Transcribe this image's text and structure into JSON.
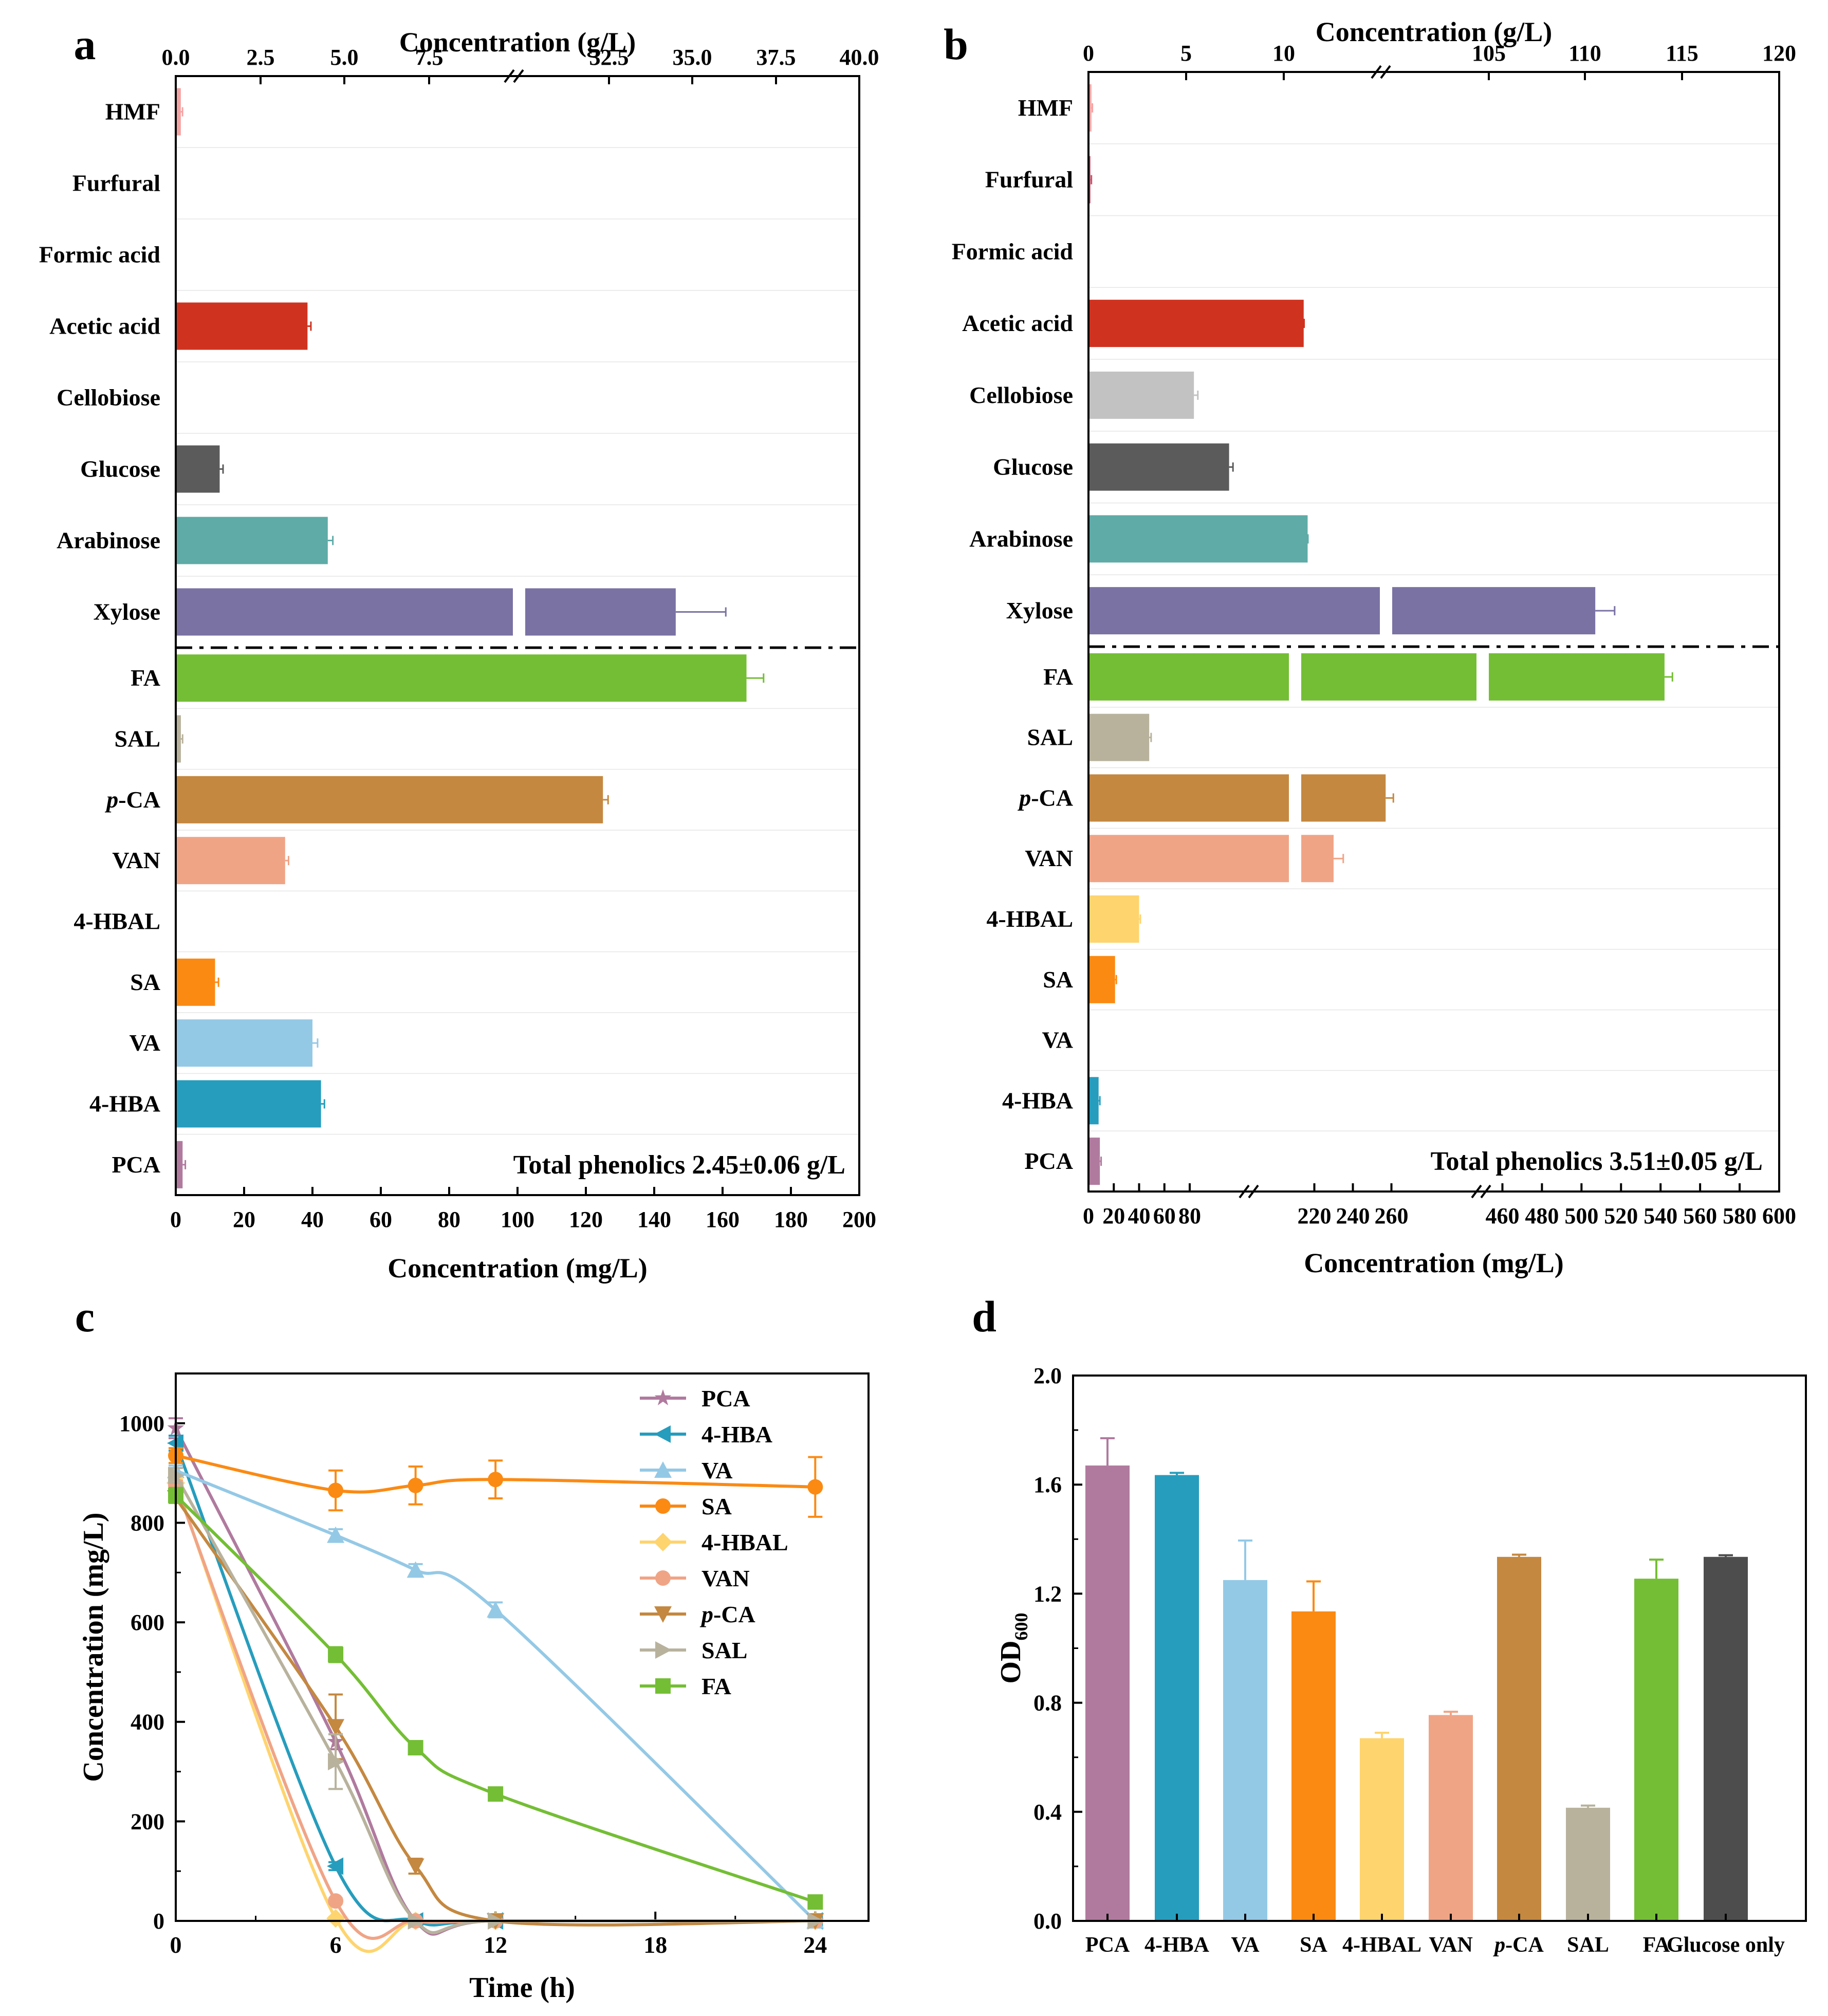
{
  "colors": {
    "HMF": "#f4a3a3",
    "Furfural": "#c2536b",
    "Formic acid": "#999999",
    "Acetic acid": "#cf3320",
    "Cellobiose": "#c2c2c2",
    "Glucose": "#5b5b5b",
    "Arabinose": "#5eaba7",
    "Xylose": "#7a72a3",
    "FA": "#74be35",
    "SAL": "#b8b29d",
    "p-CA": "#c48840",
    "VAN": "#f0a486",
    "4-HBAL": "#fed46e",
    "SA": "#fb8a13",
    "VA": "#94c9e6",
    "4-HBA": "#269dbd",
    "PCA": "#b07a9e",
    "Glucose only": "#4d4d4d"
  },
  "chart_data": [
    {
      "panel": "a",
      "type": "bar",
      "orientation": "horizontal",
      "top_axis": {
        "label": "Concentration (g/L)",
        "ticks": [
          "0.0",
          "2.5",
          "5.0",
          "7.5",
          "32.5",
          "35.0",
          "37.5",
          "40.0"
        ]
      },
      "bottom_axis": {
        "label": "Concentration (mg/L)",
        "ticks": [
          "0",
          "20",
          "40",
          "60",
          "80",
          "100",
          "120",
          "140",
          "160",
          "180",
          "200"
        ]
      },
      "sugars": {
        "unit": "g/L",
        "categories": [
          "HMF",
          "Furfural",
          "Formic acid",
          "Acetic acid",
          "Cellobiose",
          "Glucose",
          "Arabinose",
          "Xylose"
        ],
        "values": [
          0.15,
          0,
          0,
          3.9,
          0,
          1.3,
          4.5,
          34.5
        ],
        "errors": [
          0.05,
          0,
          0,
          0.1,
          0,
          0.1,
          0.15,
          1.5
        ]
      },
      "phenolics": {
        "unit": "mg/L",
        "categories": [
          "FA",
          "SAL",
          "p-CA",
          "VAN",
          "4-HBAL",
          "SA",
          "VA",
          "4-HBA",
          "PCA"
        ],
        "values": [
          167,
          1.5,
          125,
          32,
          0,
          11.5,
          40,
          42.5,
          2
        ],
        "errors": [
          5,
          0.5,
          1.5,
          1,
          0,
          1,
          1.5,
          1,
          0.8
        ]
      },
      "annotation": "Total phenolics 2.45±0.06 g/L"
    },
    {
      "panel": "b",
      "type": "bar",
      "orientation": "horizontal",
      "top_axis": {
        "label": "Concentration (g/L)",
        "ticks": [
          "0",
          "5",
          "10",
          "105",
          "110",
          "115",
          "120"
        ]
      },
      "bottom_axis": {
        "label": "Concentration (mg/L)",
        "ticks": [
          "0",
          "20",
          "40",
          "60",
          "80",
          "220",
          "240",
          "260",
          "460",
          "480",
          "500",
          "520",
          "540",
          "560",
          "580",
          "600"
        ]
      },
      "sugars": {
        "unit": "g/L",
        "categories": [
          "HMF",
          "Furfural",
          "Formic acid",
          "Acetic acid",
          "Cellobiose",
          "Glucose",
          "Arabinose",
          "Xylose"
        ],
        "values": [
          0.15,
          0.1,
          0,
          11.2,
          5.4,
          7.2,
          13.2,
          110.5
        ],
        "errors": [
          0.05,
          0.05,
          0,
          0.2,
          0.2,
          0.2,
          0.15,
          1
        ]
      },
      "phenolics": {
        "unit": "mg/L",
        "categories": [
          "FA",
          "SAL",
          "p-CA",
          "VAN",
          "4-HBAL",
          "SA",
          "VA",
          "4-HBA",
          "PCA"
        ],
        "values": [
          542,
          48,
          257,
          230,
          40,
          21,
          0,
          8,
          9
        ],
        "errors": [
          4,
          1.5,
          4,
          5,
          1,
          1,
          0,
          1,
          1
        ]
      },
      "annotation": "Total phenolics 3.51±0.05 g/L"
    },
    {
      "panel": "c",
      "type": "line",
      "xlabel": "Time (h)",
      "ylabel": "Concentration (mg/L)",
      "xticks": [
        "0",
        "6",
        "12",
        "18",
        "24"
      ],
      "yticks": [
        "0",
        "200",
        "400",
        "600",
        "800",
        "1000"
      ],
      "xlim": [
        0,
        26
      ],
      "ylim": [
        0,
        1100
      ],
      "series": [
        {
          "name": "PCA",
          "marker": "star",
          "x": [
            0,
            6,
            9,
            12,
            24
          ],
          "y": [
            990,
            360,
            0,
            0,
            0
          ],
          "err": [
            20,
            15,
            0,
            0,
            0
          ]
        },
        {
          "name": "4-HBA",
          "marker": "tri-left",
          "x": [
            0,
            6,
            9,
            12,
            24
          ],
          "y": [
            960,
            110,
            0,
            0,
            0
          ],
          "err": [
            15,
            8,
            0,
            0,
            0
          ]
        },
        {
          "name": "VA",
          "marker": "tri-up",
          "x": [
            0,
            6,
            9,
            12,
            24
          ],
          "y": [
            905,
            775,
            705,
            625,
            0
          ],
          "err": [
            10,
            12,
            12,
            15,
            0
          ]
        },
        {
          "name": "SA",
          "marker": "circle",
          "x": [
            0,
            6,
            9,
            12,
            24
          ],
          "y": [
            935,
            865,
            875,
            887,
            872
          ],
          "err": [
            15,
            40,
            38,
            38,
            60
          ]
        },
        {
          "name": "4-HBAL",
          "marker": "diamond",
          "x": [
            0,
            6,
            9,
            12,
            24
          ],
          "y": [
            880,
            5,
            0,
            0,
            0
          ],
          "err": [
            10,
            3,
            0,
            0,
            0
          ]
        },
        {
          "name": "VAN",
          "marker": "circle",
          "x": [
            0,
            6,
            9,
            12,
            24
          ],
          "y": [
            875,
            40,
            0,
            0,
            0
          ],
          "err": [
            10,
            5,
            0,
            0,
            0
          ]
        },
        {
          "name": "p-CA",
          "marker": "tri-down",
          "x": [
            0,
            6,
            9,
            12,
            24
          ],
          "y": [
            850,
            390,
            110,
            0,
            0
          ],
          "err": [
            10,
            65,
            15,
            0,
            0
          ]
        },
        {
          "name": "SAL",
          "marker": "tri-right",
          "x": [
            0,
            6,
            9,
            12,
            24
          ],
          "y": [
            895,
            320,
            0,
            0,
            0
          ],
          "err": [
            15,
            55,
            0,
            0,
            0
          ]
        },
        {
          "name": "FA",
          "marker": "square",
          "x": [
            0,
            6,
            9,
            12,
            24
          ],
          "y": [
            855,
            535,
            348,
            255,
            38
          ],
          "err": [
            15,
            15,
            8,
            8,
            8
          ]
        }
      ]
    },
    {
      "panel": "d",
      "type": "bar",
      "ylabel": "OD",
      "ylabel_sub": "600",
      "yticks": [
        "0.0",
        "0.4",
        "0.8",
        "1.2",
        "1.6",
        "2.0"
      ],
      "ylim": [
        0,
        2
      ],
      "categories": [
        "PCA",
        "4-HBA",
        "VA",
        "SA",
        "4-HBAL",
        "VAN",
        "p-CA",
        "SAL",
        "FA",
        "Glucose only"
      ],
      "values": [
        1.67,
        1.635,
        1.25,
        1.135,
        0.67,
        0.755,
        1.335,
        0.415,
        1.255,
        1.335
      ],
      "errors": [
        0.1,
        0.008,
        0.145,
        0.11,
        0.02,
        0.012,
        0.008,
        0.008,
        0.07,
        0.006
      ]
    }
  ],
  "panel_labels": [
    "a",
    "b",
    "c",
    "d"
  ]
}
